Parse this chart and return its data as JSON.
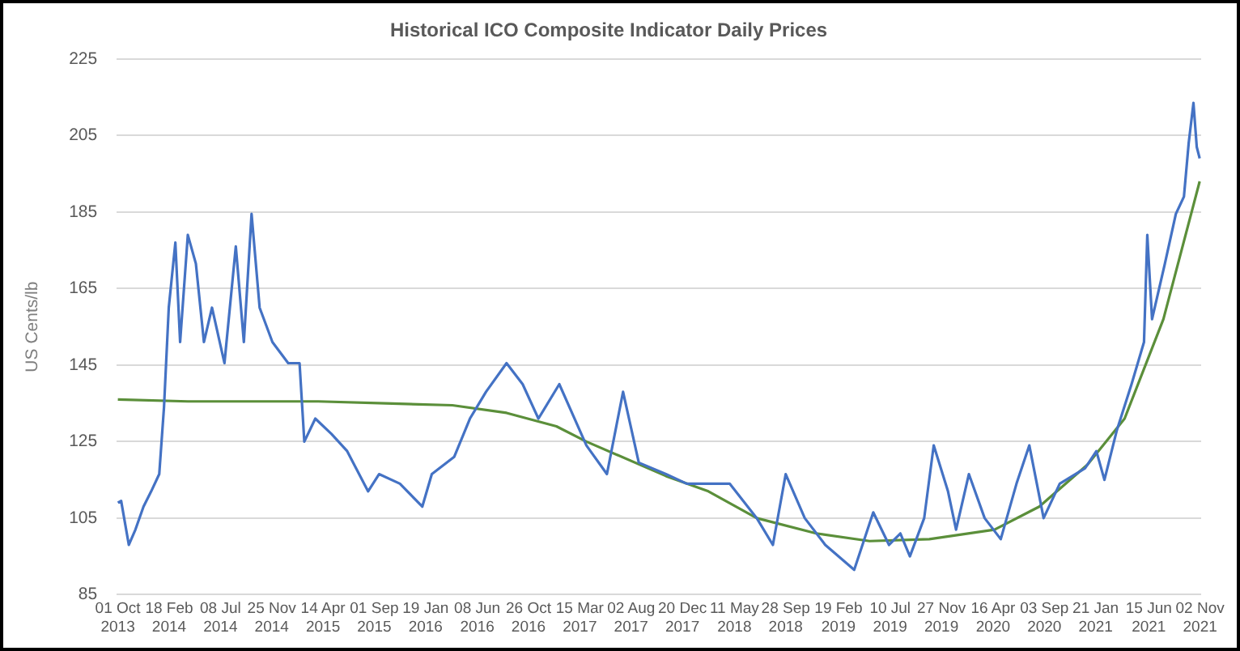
{
  "chart_data": {
    "type": "line",
    "title": "Historical ICO Composite Indicator Daily Prices",
    "ylabel": "US Cents/lb",
    "ylim": [
      85,
      225
    ],
    "yticks": [
      85,
      105,
      125,
      145,
      165,
      185,
      205,
      225
    ],
    "xlim": [
      "2013-09-28",
      "2021-11-05"
    ],
    "xticks": [
      {
        "value": "2013-10-01",
        "label": "01 Oct 2013"
      },
      {
        "value": "2014-02-18",
        "label": "18 Feb 2014"
      },
      {
        "value": "2014-07-08",
        "label": "08 Jul 2014"
      },
      {
        "value": "2014-11-25",
        "label": "25 Nov 2014"
      },
      {
        "value": "2015-04-14",
        "label": "14 Apr 2015"
      },
      {
        "value": "2015-09-01",
        "label": "01 Sep 2015"
      },
      {
        "value": "2016-01-19",
        "label": "19 Jan 2016"
      },
      {
        "value": "2016-06-08",
        "label": "08 Jun 2016"
      },
      {
        "value": "2016-10-26",
        "label": "26 Oct 2016"
      },
      {
        "value": "2017-03-15",
        "label": "15 Mar 2017"
      },
      {
        "value": "2017-08-02",
        "label": "02 Aug 2017"
      },
      {
        "value": "2017-12-20",
        "label": "20 Dec 2017"
      },
      {
        "value": "2018-05-11",
        "label": "11 May 2018"
      },
      {
        "value": "2018-09-28",
        "label": "28 Sep 2018"
      },
      {
        "value": "2019-02-19",
        "label": "19 Feb 2019"
      },
      {
        "value": "2019-07-10",
        "label": "10 Jul 2019"
      },
      {
        "value": "2019-11-27",
        "label": "27 Nov 2019"
      },
      {
        "value": "2020-04-16",
        "label": "16 Apr 2020"
      },
      {
        "value": "2020-09-03",
        "label": "03 Sep 2020"
      },
      {
        "value": "2021-01-21",
        "label": "21 Jan 2021"
      },
      {
        "value": "2021-06-15",
        "label": "15 Jun 2021"
      },
      {
        "value": "2021-11-02",
        "label": "02 Nov 2021"
      }
    ],
    "grid": "y",
    "marker": "none",
    "line_style": "solid",
    "series": [
      {
        "color": "#4472c4",
        "x": [
          "2013-10-01",
          "2013-10-10",
          "2013-10-31",
          "2013-11-18",
          "2013-12-10",
          "2013-12-31",
          "2014-01-22",
          "2014-02-04",
          "2014-02-17",
          "2014-03-07",
          "2014-03-20",
          "2014-04-10",
          "2014-05-02",
          "2014-05-24",
          "2014-06-15",
          "2014-07-19",
          "2014-08-19",
          "2014-09-10",
          "2014-10-01",
          "2014-10-23",
          "2014-11-27",
          "2015-01-09",
          "2015-02-09",
          "2015-02-22",
          "2015-03-24",
          "2015-05-07",
          "2015-06-19",
          "2015-08-15",
          "2015-09-14",
          "2015-11-10",
          "2016-01-10",
          "2016-02-05",
          "2016-04-06",
          "2016-05-19",
          "2016-07-02",
          "2016-08-27",
          "2016-10-10",
          "2016-11-22",
          "2017-01-18",
          "2017-04-02",
          "2017-05-28",
          "2017-07-11",
          "2017-08-23",
          "2017-11-05",
          "2018-01-01",
          "2018-04-28",
          "2018-07-11",
          "2018-08-24",
          "2018-09-28",
          "2018-11-19",
          "2019-01-14",
          "2019-04-03",
          "2019-05-25",
          "2019-07-07",
          "2019-08-07",
          "2019-09-02",
          "2019-10-11",
          "2019-11-06",
          "2019-12-15",
          "2020-01-06",
          "2020-02-10",
          "2020-03-24",
          "2020-05-07",
          "2020-06-19",
          "2020-07-24",
          "2020-09-01",
          "2020-10-15",
          "2020-12-23",
          "2021-01-23",
          "2021-02-14",
          "2021-03-20",
          "2021-04-29",
          "2021-06-02",
          "2021-06-11",
          "2021-06-24",
          "2021-07-29",
          "2021-08-28",
          "2021-09-19",
          "2021-10-02",
          "2021-10-15",
          "2021-10-24",
          "2021-11-01"
        ],
        "values": [
          109,
          109.5,
          98,
          102,
          108,
          112,
          116.5,
          134,
          160,
          177,
          151,
          179,
          171.5,
          151,
          160,
          145.5,
          176,
          151,
          184.5,
          160,
          151,
          145.5,
          145.5,
          125,
          131,
          127,
          122.5,
          112,
          116.5,
          114,
          108,
          116.5,
          121,
          131,
          138,
          145.5,
          140,
          131,
          140,
          124,
          116.5,
          138,
          119.5,
          116.5,
          114,
          114,
          105,
          98,
          116.5,
          105,
          98,
          91.5,
          106.5,
          98,
          101,
          95,
          105,
          124,
          112,
          102,
          116.5,
          105,
          99.5,
          114,
          124,
          105,
          114,
          118,
          122.5,
          115,
          128,
          140,
          151,
          179,
          157,
          171.5,
          184.5,
          189,
          203,
          213.5,
          202,
          199
        ]
      },
      {
        "type": "line",
        "color": "#5b8f3a",
        "x": [
          "2013-10-01",
          "2014-04-10",
          "2014-10-01",
          "2015-04-01",
          "2015-10-01",
          "2016-04-01",
          "2016-08-27",
          "2017-01-10",
          "2017-04-02",
          "2017-11-05",
          "2018-03-01",
          "2018-07-11",
          "2018-12-20",
          "2019-05-15",
          "2019-10-25",
          "2020-04-20",
          "2020-08-20",
          "2020-12-30",
          "2021-04-10",
          "2021-07-25",
          "2021-11-01"
        ],
        "values": [
          136,
          135.5,
          135.5,
          135.5,
          135,
          134.5,
          132.5,
          129,
          125,
          116,
          112,
          105,
          101,
          99,
          99.5,
          102,
          108,
          119,
          131,
          157,
          193
        ]
      }
    ]
  }
}
